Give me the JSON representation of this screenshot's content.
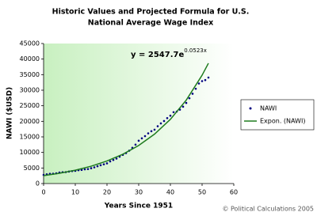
{
  "chart_data": {
    "type": "scatter",
    "title": [
      "Historic Values and Projected Formula for U.S.",
      "National Average Wage Index"
    ],
    "xlabel": "Years Since 1951",
    "ylabel": "NAWI ($USD)",
    "equation": {
      "text": "y = 2547.7e",
      "exponent": "0.0523x"
    },
    "credit": "© Political Calculations 2005",
    "xlim": [
      0,
      60
    ],
    "xticks": [
      0,
      10,
      20,
      30,
      40,
      50,
      60
    ],
    "ylim": [
      0,
      45000
    ],
    "yticks": [
      0,
      5000,
      10000,
      15000,
      20000,
      25000,
      30000,
      35000,
      40000,
      45000
    ],
    "legend": "right",
    "series": [
      {
        "name": "NAWI",
        "color": "#000080",
        "kind": "points",
        "x": [
          0,
          1,
          2,
          3,
          4,
          5,
          6,
          7,
          8,
          9,
          10,
          11,
          12,
          13,
          14,
          15,
          16,
          17,
          18,
          19,
          20,
          21,
          22,
          23,
          24,
          25,
          26,
          27,
          28,
          29,
          30,
          31,
          32,
          33,
          34,
          35,
          36,
          37,
          38,
          39,
          40,
          41,
          42,
          43,
          44,
          45,
          46,
          47,
          48,
          49,
          50,
          51,
          52
        ],
        "values": [
          2799,
          2973,
          3139,
          3156,
          3301,
          3532,
          3642,
          3674,
          3856,
          4007,
          4087,
          4291,
          4397,
          4576,
          4659,
          4938,
          5213,
          5572,
          5894,
          6186,
          6497,
          7134,
          7580,
          8031,
          8631,
          9226,
          9779,
          10556,
          11479,
          12513,
          13773,
          14531,
          15239,
          16135,
          16823,
          17322,
          18427,
          19334,
          20100,
          21028,
          21812,
          22935,
          23133,
          23754,
          24706,
          25914,
          27426,
          28861,
          30470,
          32155,
          32922,
          33252,
          34065
        ]
      },
      {
        "name": "Expon. (NAWI)",
        "color": "#1e7b1e",
        "kind": "line",
        "x": [
          0,
          5,
          10,
          15,
          20,
          25,
          30,
          35,
          40,
          45,
          50,
          52
        ],
        "values": [
          2548,
          3309,
          4298,
          5583,
          7251,
          9419,
          12234,
          15890,
          20639,
          26807,
          34819,
          38661
        ]
      }
    ]
  }
}
